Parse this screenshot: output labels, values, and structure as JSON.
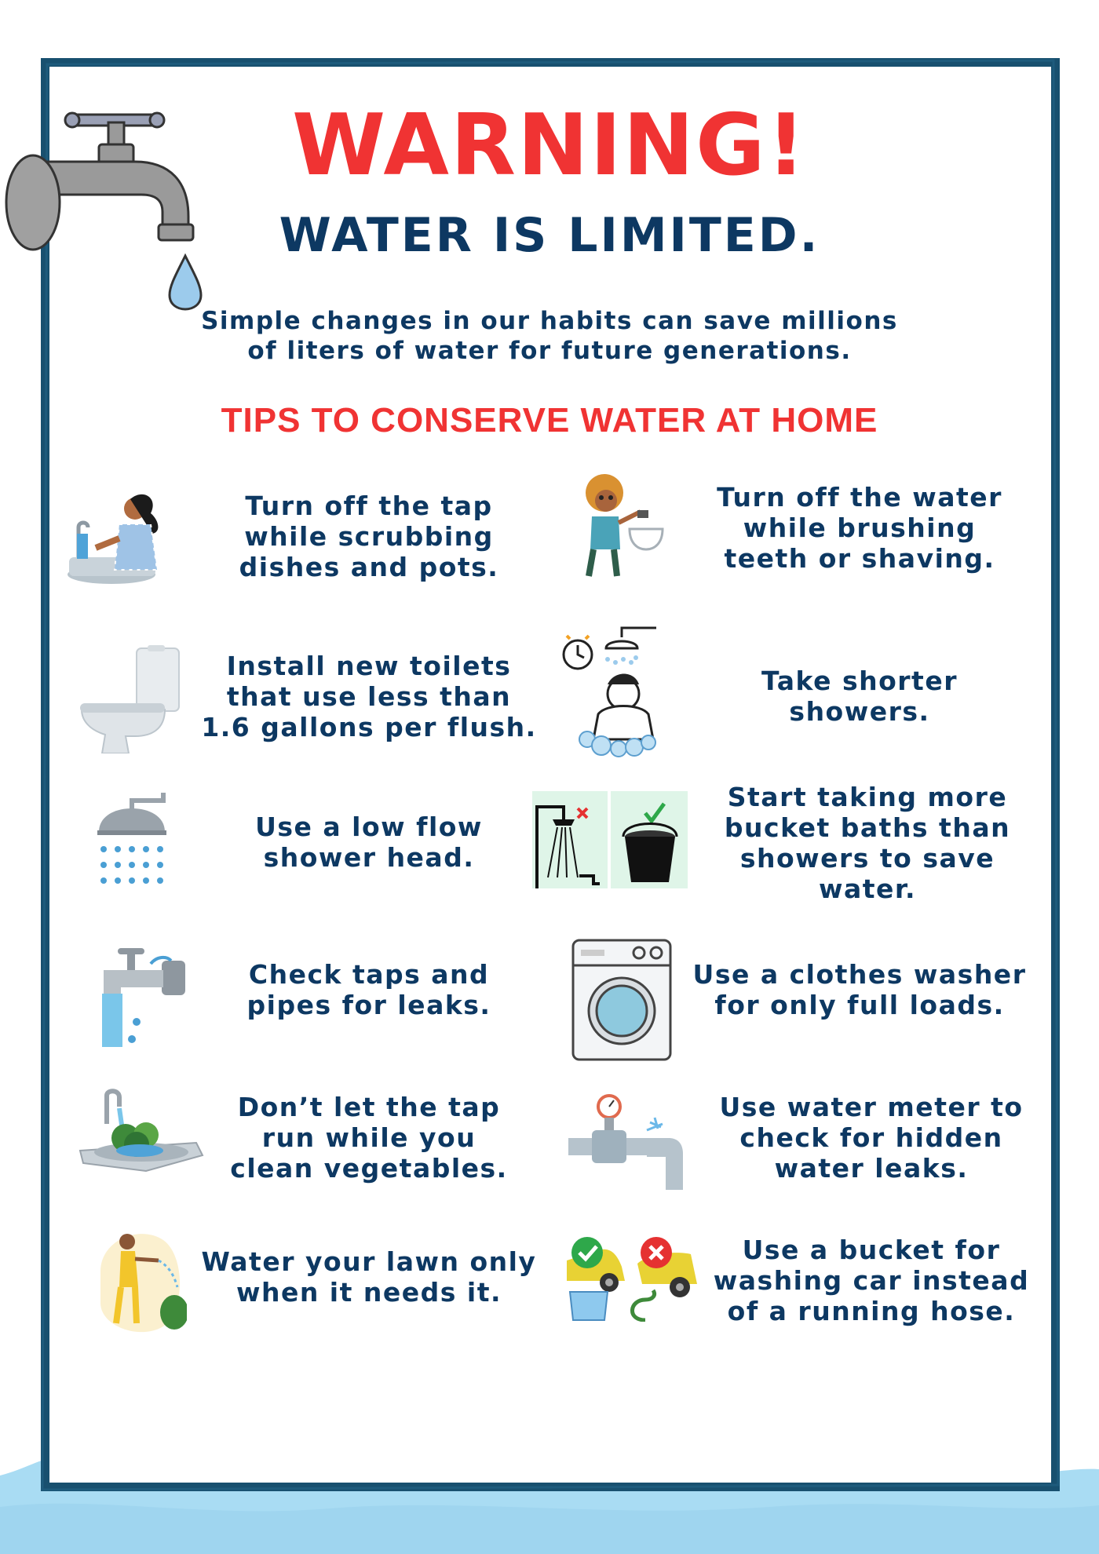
{
  "header": {
    "warning": "WARNING!",
    "subtitle": "WATER IS LIMITED.",
    "intro_line1": "Simple changes in our habits can save millions",
    "intro_line2": "of liters of water for future generations.",
    "tips_heading": "TIPS TO CONSERVE WATER AT HOME"
  },
  "tips": [
    {
      "icon": "dishwashing-icon",
      "lines": [
        "Turn off the tap",
        "while scrubbing",
        "dishes and pots."
      ]
    },
    {
      "icon": "brushing-teeth-icon",
      "lines": [
        "Turn off the water",
        "while brushing",
        "teeth or shaving."
      ]
    },
    {
      "icon": "toilet-icon",
      "lines": [
        "Install new toilets",
        "that use less than",
        "1.6 gallons per flush."
      ]
    },
    {
      "icon": "shower-timer-icon",
      "lines": [
        "Take shorter",
        "showers."
      ]
    },
    {
      "icon": "shower-head-icon",
      "lines": [
        "Use a low flow",
        "shower head."
      ]
    },
    {
      "icon": "bucket-bath-icon",
      "lines": [
        "Start taking more",
        "bucket baths than",
        "showers to save",
        "water."
      ]
    },
    {
      "icon": "leaking-tap-icon",
      "lines": [
        "Check taps and",
        "pipes for leaks."
      ]
    },
    {
      "icon": "washing-machine-icon",
      "lines": [
        "Use a clothes washer",
        "for only full loads."
      ]
    },
    {
      "icon": "vegetable-sink-icon",
      "lines": [
        "Don’t let the tap",
        "run while you",
        "clean vegetables."
      ]
    },
    {
      "icon": "water-meter-icon",
      "lines": [
        "Use water meter to",
        "check for hidden",
        "water leaks."
      ]
    },
    {
      "icon": "lawn-watering-icon",
      "lines": [
        "Water your lawn only",
        "when it needs it."
      ]
    },
    {
      "icon": "car-bucket-icon",
      "lines": [
        "Use a bucket for",
        "washing car instead",
        "of a running hose."
      ]
    }
  ],
  "colors": {
    "warning_red": "#f03333",
    "navy": "#0d3862",
    "frame": "#18506f",
    "water": "#a9dcf3",
    "faucet_gray": "#9a9a9a"
  }
}
